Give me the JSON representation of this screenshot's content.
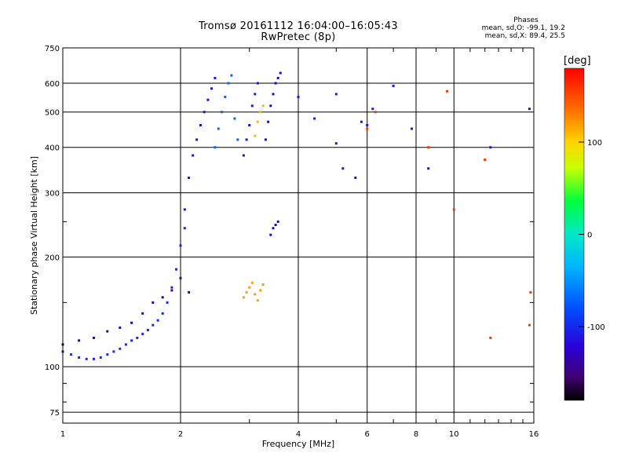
{
  "header": {
    "title": "Tromsø 20161112 16:04:00–16:05:43",
    "subtitle": "RwPretec (8p)"
  },
  "stats": {
    "heading": "Phases",
    "line_o": "mean, sd,O: -99.1, 19.2",
    "line_x": "mean, sd,X: 89.4, 25.5"
  },
  "chart_data": {
    "type": "scatter",
    "title": "Tromsø 20161112 16:04:00–16:05:43",
    "subtitle": "RwPretec (8p)",
    "xlabel": "Frequency [MHz]",
    "ylabel": "Stationary phase Virtual Height [km]",
    "xscale": "log",
    "yscale": "log",
    "xlim": [
      1,
      16
    ],
    "ylim": [
      70,
      750
    ],
    "xticks": [
      1,
      2,
      4,
      6,
      8,
      10,
      16
    ],
    "yticks": [
      75,
      100,
      200,
      300,
      400,
      500,
      600,
      750
    ],
    "grid": true,
    "colorbar": {
      "label": "[deg]",
      "range": [
        -180,
        180
      ],
      "ticks": [
        100,
        0,
        -100
      ]
    },
    "series": [
      {
        "x": [
          1.0,
          1.05,
          1.1,
          1.15,
          1.2,
          1.25,
          1.3,
          1.35,
          1.4,
          1.45,
          1.5,
          1.55,
          1.6,
          1.65,
          1.7,
          1.75,
          1.8,
          1.85,
          1.9,
          1.95,
          2.0,
          2.05
        ],
        "y": [
          110,
          108,
          106,
          105,
          105,
          106,
          108,
          110,
          112,
          115,
          118,
          120,
          123,
          126,
          130,
          134,
          140,
          150,
          165,
          185,
          215,
          240
        ],
        "phase": -100
      },
      {
        "x": [
          1.0,
          1.1,
          1.2,
          1.3,
          1.4,
          1.5,
          1.6,
          1.7,
          1.8,
          1.9,
          2.0,
          2.1
        ],
        "y": [
          115,
          118,
          120,
          125,
          128,
          132,
          140,
          150,
          155,
          162,
          175,
          160
        ],
        "phase": -140
      },
      {
        "x": [
          2.05,
          2.1,
          2.15,
          2.2,
          2.25,
          2.3,
          2.35,
          2.4,
          2.45
        ],
        "y": [
          270,
          330,
          380,
          420,
          460,
          500,
          540,
          580,
          620
        ],
        "phase": -110
      },
      {
        "x": [
          2.45,
          2.5,
          2.55,
          2.6,
          2.65,
          2.7,
          2.75,
          2.8
        ],
        "y": [
          400,
          450,
          500,
          550,
          600,
          630,
          480,
          420
        ],
        "phase": -70
      },
      {
        "x": [
          2.9,
          2.95,
          3.0,
          3.05,
          3.1,
          3.15
        ],
        "y": [
          380,
          420,
          460,
          520,
          560,
          600
        ],
        "phase": -110
      },
      {
        "x": [
          3.1,
          3.15,
          3.2,
          3.25
        ],
        "y": [
          430,
          470,
          500,
          520
        ],
        "phase": 110
      },
      {
        "x": [
          3.3,
          3.35,
          3.4,
          3.45,
          3.5,
          3.55,
          3.6
        ],
        "y": [
          420,
          470,
          520,
          560,
          600,
          620,
          640
        ],
        "phase": -120
      },
      {
        "x": [
          3.4,
          3.45,
          3.5,
          3.55
        ],
        "y": [
          230,
          240,
          245,
          250
        ],
        "phase": -120
      },
      {
        "x": [
          2.9,
          2.95,
          3.0,
          3.05,
          3.1,
          3.15,
          3.2,
          3.25
        ],
        "y": [
          155,
          160,
          165,
          170,
          158,
          152,
          162,
          168
        ],
        "phase": 120
      },
      {
        "x": [
          4.0,
          4.4,
          5.0,
          5.0,
          5.2,
          5.6,
          5.8,
          6.0,
          6.2,
          7.0,
          7.8,
          8.6,
          12.4,
          15.6
        ],
        "y": [
          550,
          480,
          560,
          410,
          350,
          330,
          470,
          460,
          510,
          590,
          450,
          350,
          400,
          510
        ],
        "phase": -110
      },
      {
        "x": [
          6.0,
          6.3,
          8.6,
          9.6,
          10.0,
          12.0,
          12.4,
          15.6,
          15.7
        ],
        "y": [
          450,
          500,
          400,
          570,
          270,
          370,
          120,
          130,
          160
        ],
        "phase": 160
      }
    ]
  }
}
